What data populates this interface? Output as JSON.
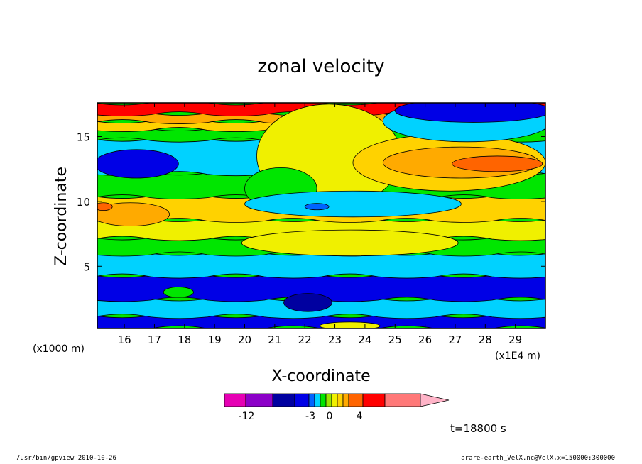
{
  "chart_data": {
    "type": "heatmap",
    "title": "zonal velocity",
    "xlabel": "X-coordinate",
    "ylabel": "Z-coordinate",
    "x_unit_label": "(x1E4 m)",
    "z_unit_label": "(x1000 m)",
    "xlim": [
      15.1,
      30
    ],
    "ylim": [
      0.2,
      17.6
    ],
    "x_ticks": [
      "16",
      "17",
      "18",
      "19",
      "20",
      "21",
      "22",
      "23",
      "24",
      "25",
      "26",
      "27",
      "28",
      "29"
    ],
    "y_ticks": [
      "5",
      "10",
      "15"
    ],
    "time_label": "t=18800 s",
    "colorbar": {
      "colors": [
        "#e600b4",
        "#8c00c8",
        "#0000a0",
        "#0000e6",
        "#0064ff",
        "#00d2ff",
        "#00e600",
        "#9be600",
        "#f0f000",
        "#ffd200",
        "#ffaa00",
        "#ff6400",
        "#ff0000",
        "#ff7878",
        "#ffb4c8"
      ],
      "tick_labels": [
        "-12",
        "-3",
        "0",
        "4"
      ]
    },
    "bands": [
      {
        "color": "#0000e6",
        "z": [
          0.3,
          1.2
        ],
        "label": "blue"
      },
      {
        "color": "#00d2ff",
        "z": [
          1.2,
          2.5
        ],
        "label": "cyan"
      },
      {
        "color": "#0000e6",
        "z": [
          2.5,
          4.3
        ],
        "label": "blue"
      },
      {
        "color": "#00d2ff",
        "z": [
          4.3,
          6.0
        ],
        "label": "cyan"
      },
      {
        "color": "#00e600",
        "z": [
          6.0,
          7.2
        ],
        "label": "green"
      },
      {
        "color": "#f0f000",
        "z": [
          7.2,
          8.6
        ],
        "label": "yellow"
      },
      {
        "color": "#ffd200",
        "z": [
          8.6,
          10.4
        ],
        "label": "light-orange"
      },
      {
        "color": "#00e600",
        "z": [
          10.4,
          12.2
        ],
        "label": "green"
      },
      {
        "color": "#00d2ff",
        "z": [
          12.2,
          14.8
        ],
        "label": "cyan"
      },
      {
        "color": "#00e600",
        "z": [
          14.8,
          15.6
        ],
        "label": "green"
      },
      {
        "color": "#ffd200",
        "z": [
          15.6,
          16.2
        ],
        "label": "light-orange"
      },
      {
        "color": "#ffaa00",
        "z": [
          16.2,
          16.8
        ],
        "label": "orange"
      },
      {
        "color": "#ff0000",
        "z": [
          16.8,
          17.6
        ],
        "label": "red"
      }
    ],
    "blobs": [
      {
        "color": "#f0f000",
        "cx": 22.8,
        "cz": 13.5,
        "rx": 2.4,
        "rz": 4.0,
        "label": "yellow column"
      },
      {
        "color": "#00e600",
        "cx": 21.2,
        "cz": 11.0,
        "rx": 1.2,
        "rz": 1.6,
        "label": "green"
      },
      {
        "color": "#ffd200",
        "cx": 26.8,
        "cz": 13.0,
        "rx": 3.2,
        "rz": 2.2,
        "label": "orange east upper"
      },
      {
        "color": "#ffaa00",
        "cx": 27.2,
        "cz": 13.0,
        "rx": 2.6,
        "rz": 1.2,
        "label": "orange east core"
      },
      {
        "color": "#ff6400",
        "cx": 28.4,
        "cz": 12.9,
        "rx": 1.5,
        "rz": 0.6,
        "label": "orange-red east"
      },
      {
        "color": "#00d2ff",
        "cx": 27.4,
        "cz": 16.2,
        "rx": 2.8,
        "rz": 1.6,
        "label": "cyan NE"
      },
      {
        "color": "#0000e6",
        "cx": 27.6,
        "cz": 17.0,
        "rx": 2.6,
        "rz": 0.9,
        "label": "blue NE"
      },
      {
        "color": "#00d2ff",
        "cx": 23.6,
        "cz": 9.8,
        "rx": 3.6,
        "rz": 1.0,
        "label": "cyan mid"
      },
      {
        "color": "#0064ff",
        "cx": 22.4,
        "cz": 9.6,
        "rx": 0.4,
        "rz": 0.25,
        "label": "blue spot"
      },
      {
        "color": "#f0f000",
        "cx": 23.5,
        "cz": 6.8,
        "rx": 3.6,
        "rz": 1.0,
        "label": "yellow mid"
      },
      {
        "color": "#ffaa00",
        "cx": 16.2,
        "cz": 9.0,
        "rx": 1.3,
        "rz": 0.9,
        "label": "orange west"
      },
      {
        "color": "#ff6400",
        "cx": 15.3,
        "cz": 9.6,
        "rx": 0.3,
        "rz": 0.3,
        "label": "red west spot"
      },
      {
        "color": "#0000e6",
        "cx": 16.4,
        "cz": 12.9,
        "rx": 1.4,
        "rz": 1.1,
        "label": "blue west"
      },
      {
        "color": "#0000a0",
        "cx": 22.1,
        "cz": 2.2,
        "rx": 0.8,
        "rz": 0.7,
        "label": "dark blue"
      },
      {
        "color": "#00e600",
        "cx": 17.8,
        "cz": 3.0,
        "rx": 0.5,
        "rz": 0.4,
        "label": "green low"
      },
      {
        "color": "#f0f000",
        "cx": 23.5,
        "cz": 0.4,
        "rx": 1.0,
        "rz": 0.3,
        "label": "yellow bottom"
      }
    ]
  },
  "footer": {
    "left": "/usr/bin/gpview   2010-10-26",
    "right": "arare-earth_VelX.nc@VelX,x=150000:300000"
  }
}
